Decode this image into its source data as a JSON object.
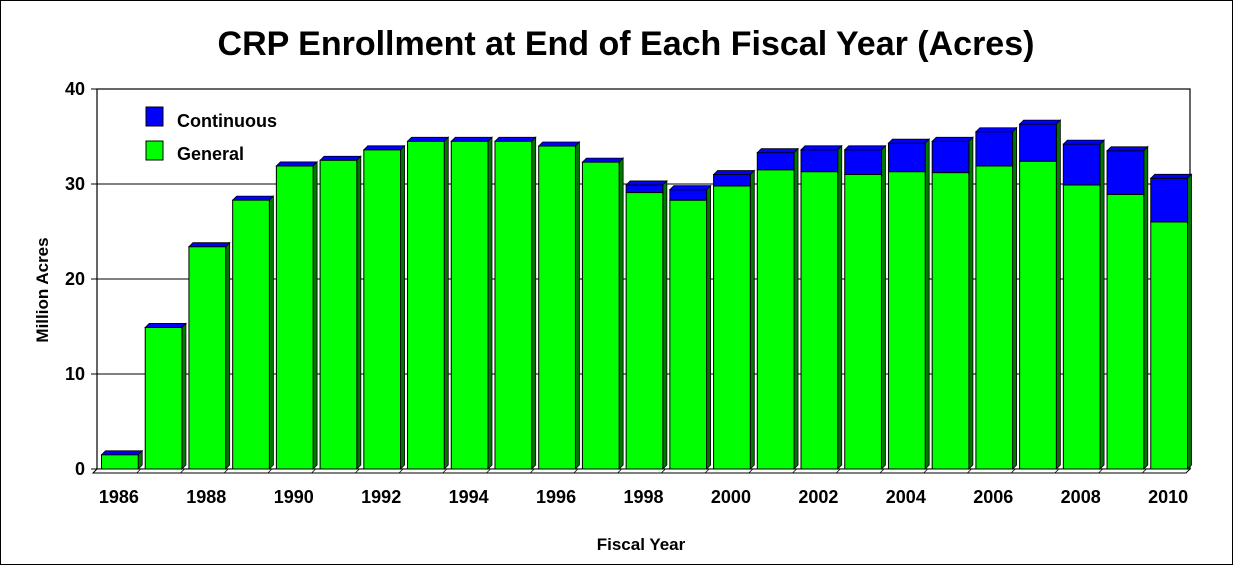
{
  "chart_data": {
    "type": "bar",
    "stacked": true,
    "title": "CRP Enrollment at End of Each Fiscal Year (Acres)",
    "xlabel": "Fiscal Year",
    "ylabel": "Million Acres",
    "ylim": [
      0,
      40
    ],
    "yticks": [
      0,
      10,
      20,
      30,
      40
    ],
    "grid": true,
    "legend_position": "top-left",
    "categories": [
      "1986",
      "1987",
      "1988",
      "1989",
      "1990",
      "1991",
      "1992",
      "1993",
      "1994",
      "1995",
      "1996",
      "1997",
      "1998",
      "1999",
      "2000",
      "2001",
      "2002",
      "2003",
      "2004",
      "2005",
      "2006",
      "2007",
      "2008",
      "2009",
      "2010"
    ],
    "x_tick_labels": [
      "1986",
      "1988",
      "1990",
      "1992",
      "1994",
      "1996",
      "1998",
      "2000",
      "2002",
      "2004",
      "2006",
      "2008",
      "2010"
    ],
    "series": [
      {
        "name": "General",
        "color": "#00ff00",
        "values": [
          1.5,
          14.9,
          23.4,
          28.3,
          31.9,
          32.5,
          33.6,
          34.5,
          34.5,
          34.5,
          34.0,
          32.3,
          29.1,
          28.3,
          29.8,
          31.5,
          31.3,
          31.0,
          31.3,
          31.2,
          31.9,
          32.4,
          29.9,
          28.9,
          26.0
        ]
      },
      {
        "name": "Continuous",
        "color": "#0000ff",
        "values": [
          0.0,
          0.0,
          0.0,
          0.0,
          0.0,
          0.0,
          0.0,
          0.0,
          0.0,
          0.0,
          0.0,
          0.0,
          0.8,
          1.1,
          1.2,
          1.8,
          2.3,
          2.6,
          3.0,
          3.3,
          3.6,
          3.9,
          4.3,
          4.6,
          4.6
        ]
      }
    ]
  }
}
